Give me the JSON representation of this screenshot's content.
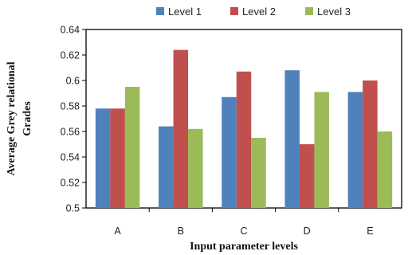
{
  "chart_data": {
    "type": "bar",
    "title": "",
    "xlabel": "Input parameter levels",
    "ylabel_lines": [
      "Average Grey relational",
      "Grades"
    ],
    "categories": [
      "A",
      "B",
      "C",
      "D",
      "E"
    ],
    "series": [
      {
        "name": "Level 1",
        "color": "#4f81bd",
        "values": [
          0.578,
          0.564,
          0.587,
          0.608,
          0.591
        ]
      },
      {
        "name": "Level 2",
        "color": "#c0504d",
        "values": [
          0.578,
          0.624,
          0.607,
          0.55,
          0.6
        ]
      },
      {
        "name": "Level 3",
        "color": "#9bbb59",
        "values": [
          0.595,
          0.562,
          0.555,
          0.591,
          0.56
        ]
      }
    ],
    "ylim": [
      0.5,
      0.64
    ],
    "yticks": [
      0.5,
      0.52,
      0.54,
      0.56,
      0.58,
      0.6,
      0.62,
      0.64
    ],
    "ytick_labels": [
      "0.5",
      "0.52",
      "0.54",
      "0.56",
      "0.58",
      "0.6",
      "0.62",
      "0.64"
    ],
    "grid": false,
    "legend_position": "top"
  }
}
